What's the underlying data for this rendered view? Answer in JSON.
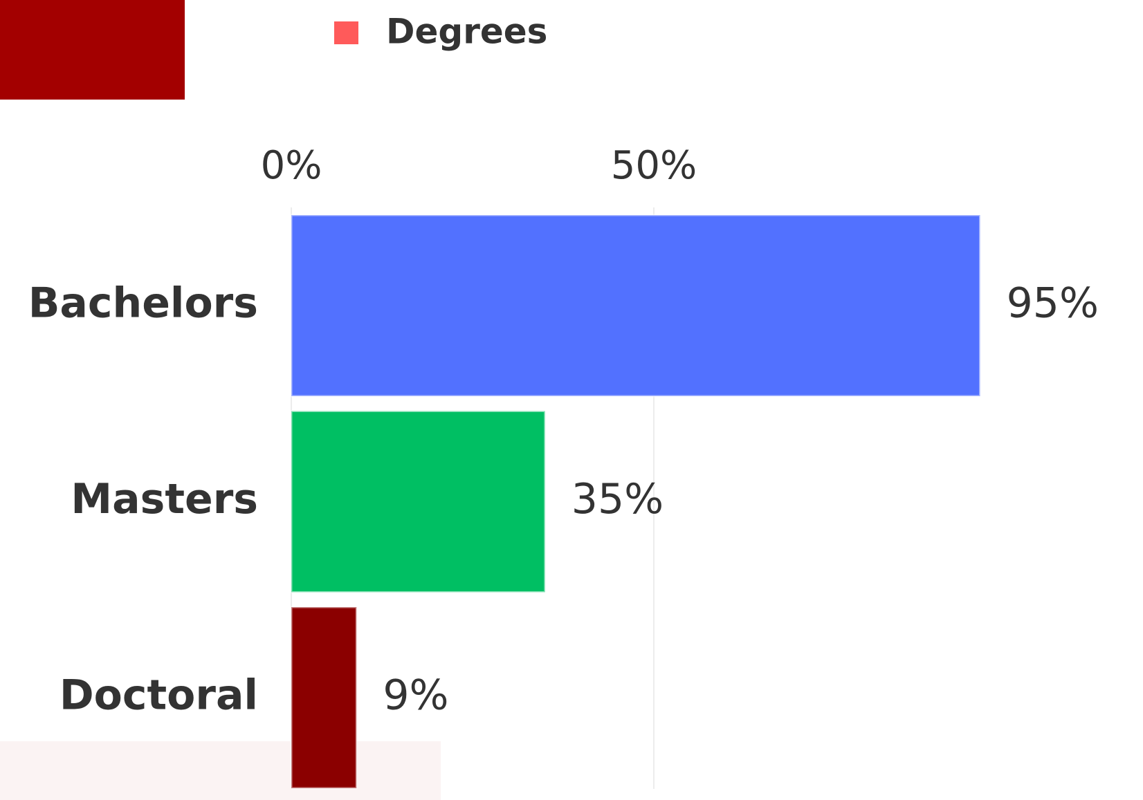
{
  "chart_data": {
    "type": "bar",
    "orientation": "horizontal",
    "categories": [
      "Bachelors",
      "Masters",
      "Doctoral"
    ],
    "series": [
      {
        "name": "Degrees",
        "color": "#ff5a5a",
        "values": [
          95,
          35,
          9
        ],
        "value_labels": [
          "95%",
          "35%",
          "9%"
        ]
      }
    ],
    "bar_colors": [
      "#5271ff",
      "#00bf63",
      "#8b0000"
    ],
    "xlim": [
      0,
      100
    ],
    "xticks": [
      {
        "value": 0,
        "label": "0%"
      },
      {
        "value": 50,
        "label": "50%"
      }
    ],
    "grid": true,
    "legend": "top"
  }
}
